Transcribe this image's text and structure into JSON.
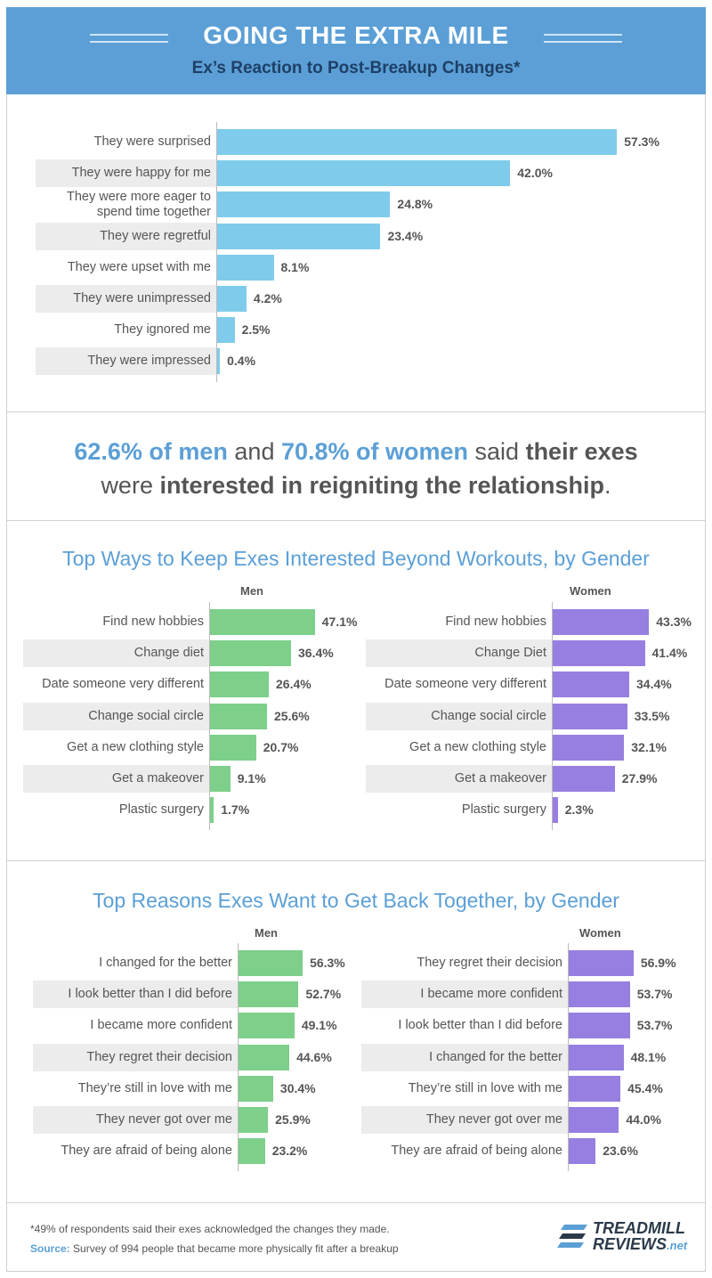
{
  "header": {
    "title": "GOING THE EXTRA MILE",
    "subtitle": "Ex’s Reaction to Post-Breakup Changes*"
  },
  "callout": {
    "p1": "62.6% of men",
    "p2": " and ",
    "p3": "70.8% of women",
    "p4": " said ",
    "p5": "their exes",
    "p6": "were ",
    "p7": "interested in reigniting the relationship",
    "p8": "."
  },
  "colors": {
    "blue_bar": "#7fcbec",
    "green_bar": "#7dcf8a",
    "purple_bar": "#967fe0",
    "accent": "#5b9fd6"
  },
  "chart_data": [
    {
      "type": "bar",
      "orientation": "horizontal",
      "title": "Ex’s Reaction to Post-Breakup Changes*",
      "categories": [
        "They were surprised",
        "They were happy for me",
        "They were more eager to spend time together",
        "They were regretful",
        "They were upset with me",
        "They were unimpressed",
        "They ignored me",
        "They were impressed"
      ],
      "values": [
        57.3,
        42.0,
        24.8,
        23.4,
        8.1,
        4.2,
        2.5,
        0.4
      ],
      "value_labels": [
        "57.3%",
        "42.0%",
        "24.8%",
        "23.4%",
        "8.1%",
        "4.2%",
        "2.5%",
        "0.4%"
      ],
      "xlim": [
        0,
        60
      ]
    },
    {
      "type": "bar",
      "orientation": "horizontal",
      "title": "Top Ways to Keep Exes Interested Beyond Workouts, by Gender",
      "panels": [
        {
          "name": "Men",
          "categories": [
            "Find new hobbies",
            "Change diet",
            "Date someone very different",
            "Change social circle",
            "Get a new clothing style",
            "Get a makeover",
            "Plastic surgery"
          ],
          "values": [
            47.1,
            36.4,
            26.4,
            25.6,
            20.7,
            9.1,
            1.7
          ],
          "value_labels": [
            "47.1%",
            "36.4%",
            "26.4%",
            "25.6%",
            "20.7%",
            "9.1%",
            "1.7%"
          ]
        },
        {
          "name": "Women",
          "categories": [
            "Find new hobbies",
            "Change Diet",
            "Date someone very different",
            "Change social circle",
            "Get a new clothing style",
            "Get a makeover",
            "Plastic surgery"
          ],
          "values": [
            43.3,
            41.4,
            34.4,
            33.5,
            32.1,
            27.9,
            2.3
          ],
          "value_labels": [
            "43.3%",
            "41.4%",
            "34.4%",
            "33.5%",
            "32.1%",
            "27.9%",
            "2.3%"
          ]
        }
      ]
    },
    {
      "type": "bar",
      "orientation": "horizontal",
      "title": "Top Reasons Exes Want to Get Back Together, by Gender",
      "panels": [
        {
          "name": "Men",
          "categories": [
            "I changed for the better",
            "I look better than I did before",
            "I became more confident",
            "They regret their decision",
            "They’re still in love with me",
            "They never got over me",
            "They are afraid of being alone"
          ],
          "values": [
            56.3,
            52.7,
            49.1,
            44.6,
            30.4,
            25.9,
            23.2
          ],
          "value_labels": [
            "56.3%",
            "52.7%",
            "49.1%",
            "44.6%",
            "30.4%",
            "25.9%",
            "23.2%"
          ]
        },
        {
          "name": "Women",
          "categories": [
            "They regret their decision",
            "I became more confident",
            "I look better than I did before",
            "I changed for the better",
            "They’re still in love with me",
            "They never got over me",
            "They are afraid of being alone"
          ],
          "values": [
            56.9,
            53.7,
            53.7,
            48.1,
            45.4,
            44.0,
            23.6
          ],
          "value_labels": [
            "56.9%",
            "53.7%",
            "53.7%",
            "48.1%",
            "45.4%",
            "44.0%",
            "23.6%"
          ]
        }
      ]
    }
  ],
  "footer": {
    "note": "*49% of respondents said their exes acknowledged the changes they made.",
    "source_label": "Source:",
    "source_text": " Survey of 994 people that became more physically fit after a breakup"
  },
  "logo": {
    "line1": "TREADMILL",
    "line2": "REVIEWS",
    "suffix": ".net"
  }
}
